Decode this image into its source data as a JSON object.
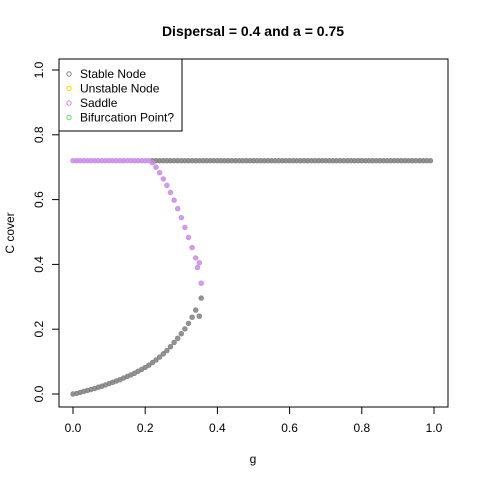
{
  "chart_data": {
    "type": "scatter",
    "title": "Dispersal =  0.4 and a = 0.75",
    "xlabel": "g",
    "ylabel": "C cover",
    "xlim": [
      0,
      1
    ],
    "ylim": [
      0,
      1
    ],
    "xticks": [
      "0.0",
      "0.2",
      "0.4",
      "0.6",
      "0.8",
      "1.0"
    ],
    "yticks": [
      "0.0",
      "0.2",
      "0.4",
      "0.6",
      "0.8",
      "1.0"
    ],
    "legend_position": "top-left",
    "legend": [
      {
        "label": "Stable Node",
        "color": "#808080"
      },
      {
        "label": "Unstable Node",
        "color": "#ffd700"
      },
      {
        "label": "Saddle",
        "color": "#c88ce6"
      },
      {
        "label": "Bifurcation Point?",
        "color": "#66d966"
      }
    ],
    "series": [
      {
        "name": "Stable Node",
        "color": "#808080",
        "points": [
          [
            0.22,
            0.72
          ],
          [
            0.23,
            0.72
          ],
          [
            0.24,
            0.72
          ],
          [
            0.25,
            0.72
          ],
          [
            0.26,
            0.72
          ],
          [
            0.27,
            0.72
          ],
          [
            0.28,
            0.72
          ],
          [
            0.29,
            0.72
          ],
          [
            0.3,
            0.72
          ],
          [
            0.31,
            0.72
          ],
          [
            0.32,
            0.72
          ],
          [
            0.33,
            0.72
          ],
          [
            0.34,
            0.72
          ],
          [
            0.35,
            0.72
          ],
          [
            0.36,
            0.72
          ],
          [
            0.37,
            0.72
          ],
          [
            0.38,
            0.72
          ],
          [
            0.39,
            0.72
          ],
          [
            0.4,
            0.72
          ],
          [
            0.41,
            0.72
          ],
          [
            0.42,
            0.72
          ],
          [
            0.43,
            0.72
          ],
          [
            0.44,
            0.72
          ],
          [
            0.45,
            0.72
          ],
          [
            0.46,
            0.72
          ],
          [
            0.47,
            0.72
          ],
          [
            0.48,
            0.72
          ],
          [
            0.49,
            0.72
          ],
          [
            0.5,
            0.72
          ],
          [
            0.51,
            0.72
          ],
          [
            0.52,
            0.72
          ],
          [
            0.53,
            0.72
          ],
          [
            0.54,
            0.72
          ],
          [
            0.55,
            0.72
          ],
          [
            0.56,
            0.72
          ],
          [
            0.57,
            0.72
          ],
          [
            0.58,
            0.72
          ],
          [
            0.59,
            0.72
          ],
          [
            0.6,
            0.72
          ],
          [
            0.61,
            0.72
          ],
          [
            0.62,
            0.72
          ],
          [
            0.63,
            0.72
          ],
          [
            0.64,
            0.72
          ],
          [
            0.65,
            0.72
          ],
          [
            0.66,
            0.72
          ],
          [
            0.67,
            0.72
          ],
          [
            0.68,
            0.72
          ],
          [
            0.69,
            0.72
          ],
          [
            0.7,
            0.72
          ],
          [
            0.71,
            0.72
          ],
          [
            0.72,
            0.72
          ],
          [
            0.73,
            0.72
          ],
          [
            0.74,
            0.72
          ],
          [
            0.75,
            0.72
          ],
          [
            0.76,
            0.72
          ],
          [
            0.77,
            0.72
          ],
          [
            0.78,
            0.72
          ],
          [
            0.79,
            0.72
          ],
          [
            0.8,
            0.72
          ],
          [
            0.81,
            0.72
          ],
          [
            0.82,
            0.72
          ],
          [
            0.83,
            0.72
          ],
          [
            0.84,
            0.72
          ],
          [
            0.85,
            0.72
          ],
          [
            0.86,
            0.72
          ],
          [
            0.87,
            0.72
          ],
          [
            0.88,
            0.72
          ],
          [
            0.89,
            0.72
          ],
          [
            0.9,
            0.72
          ],
          [
            0.91,
            0.72
          ],
          [
            0.92,
            0.72
          ],
          [
            0.93,
            0.72
          ],
          [
            0.94,
            0.72
          ],
          [
            0.95,
            0.72
          ],
          [
            0.96,
            0.72
          ],
          [
            0.97,
            0.72
          ],
          [
            0.98,
            0.72
          ],
          [
            0.99,
            0.72
          ],
          [
            0.0,
            0.0
          ],
          [
            0.01,
            0.002
          ],
          [
            0.02,
            0.005
          ],
          [
            0.03,
            0.008
          ],
          [
            0.04,
            0.011
          ],
          [
            0.05,
            0.014
          ],
          [
            0.06,
            0.017
          ],
          [
            0.07,
            0.021
          ],
          [
            0.08,
            0.024
          ],
          [
            0.09,
            0.028
          ],
          [
            0.1,
            0.032
          ],
          [
            0.11,
            0.036
          ],
          [
            0.12,
            0.04
          ],
          [
            0.13,
            0.044
          ],
          [
            0.14,
            0.049
          ],
          [
            0.15,
            0.054
          ],
          [
            0.16,
            0.059
          ],
          [
            0.17,
            0.064
          ],
          [
            0.18,
            0.07
          ],
          [
            0.19,
            0.076
          ],
          [
            0.2,
            0.082
          ],
          [
            0.21,
            0.089
          ],
          [
            0.22,
            0.097
          ],
          [
            0.23,
            0.105
          ],
          [
            0.24,
            0.114
          ],
          [
            0.25,
            0.124
          ],
          [
            0.26,
            0.134
          ],
          [
            0.27,
            0.146
          ],
          [
            0.28,
            0.159
          ],
          [
            0.29,
            0.172
          ],
          [
            0.3,
            0.186
          ],
          [
            0.31,
            0.201
          ],
          [
            0.32,
            0.218
          ],
          [
            0.33,
            0.237
          ],
          [
            0.34,
            0.259
          ],
          [
            0.35,
            0.24
          ],
          [
            0.355,
            0.296
          ]
        ]
      },
      {
        "name": "Saddle",
        "color": "#c88ce6",
        "points": [
          [
            0.0,
            0.72
          ],
          [
            0.01,
            0.72
          ],
          [
            0.02,
            0.72
          ],
          [
            0.03,
            0.72
          ],
          [
            0.04,
            0.72
          ],
          [
            0.05,
            0.72
          ],
          [
            0.06,
            0.72
          ],
          [
            0.07,
            0.72
          ],
          [
            0.08,
            0.72
          ],
          [
            0.09,
            0.72
          ],
          [
            0.1,
            0.72
          ],
          [
            0.11,
            0.72
          ],
          [
            0.12,
            0.72
          ],
          [
            0.13,
            0.72
          ],
          [
            0.14,
            0.72
          ],
          [
            0.15,
            0.72
          ],
          [
            0.16,
            0.72
          ],
          [
            0.17,
            0.72
          ],
          [
            0.18,
            0.72
          ],
          [
            0.19,
            0.72
          ],
          [
            0.2,
            0.72
          ],
          [
            0.21,
            0.72
          ],
          [
            0.22,
            0.714
          ],
          [
            0.23,
            0.7
          ],
          [
            0.24,
            0.683
          ],
          [
            0.25,
            0.664
          ],
          [
            0.26,
            0.644
          ],
          [
            0.27,
            0.622
          ],
          [
            0.28,
            0.598
          ],
          [
            0.29,
            0.572
          ],
          [
            0.3,
            0.544
          ],
          [
            0.31,
            0.514
          ],
          [
            0.32,
            0.483
          ],
          [
            0.33,
            0.452
          ],
          [
            0.34,
            0.42
          ],
          [
            0.345,
            0.39
          ],
          [
            0.35,
            0.405
          ],
          [
            0.355,
            0.342
          ]
        ]
      }
    ]
  }
}
